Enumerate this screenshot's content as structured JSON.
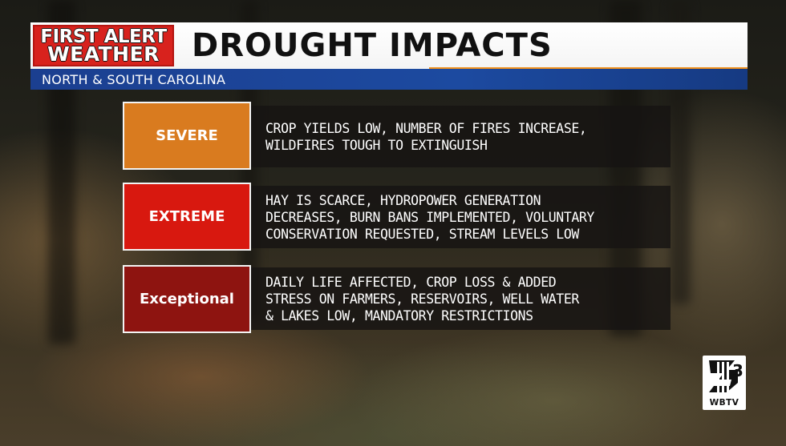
{
  "brand": {
    "logo_line1": "FIRST ALERT",
    "logo_line2": "WEATHER",
    "logo_color": "#d8221d"
  },
  "header": {
    "title": "DROUGHT IMPACTS",
    "subtitle": "NORTH & SOUTH CAROLINA",
    "accent_color": "#f0901c",
    "subbar_color": "#1c4aa0"
  },
  "rows": [
    {
      "category": "SEVERE",
      "color": "#d97b1f",
      "lines": [
        "CROP YIELDS LOW, NUMBER OF FIRES INCREASE,",
        "WILDFIRES TOUGH TO EXTINGUISH"
      ]
    },
    {
      "category": "EXTREME",
      "color": "#d8180f",
      "lines": [
        "HAY IS SCARCE, HYDROPOWER GENERATION",
        "DECREASES, BURN BANS IMPLEMENTED, VOLUNTARY",
        "CONSERVATION REQUESTED, STREAM LEVELS LOW"
      ]
    },
    {
      "category": "Exceptional",
      "color": "#8e1410",
      "lines": [
        "DAILY LIFE AFFECTED, CROP LOSS & ADDED",
        "STRESS ON FARMERS, RESERVOIRS, WELL WATER",
        "& LAKES LOW, MANDATORY RESTRICTIONS"
      ]
    }
  ],
  "station": {
    "number": "3",
    "call_sign": "WBTV"
  }
}
